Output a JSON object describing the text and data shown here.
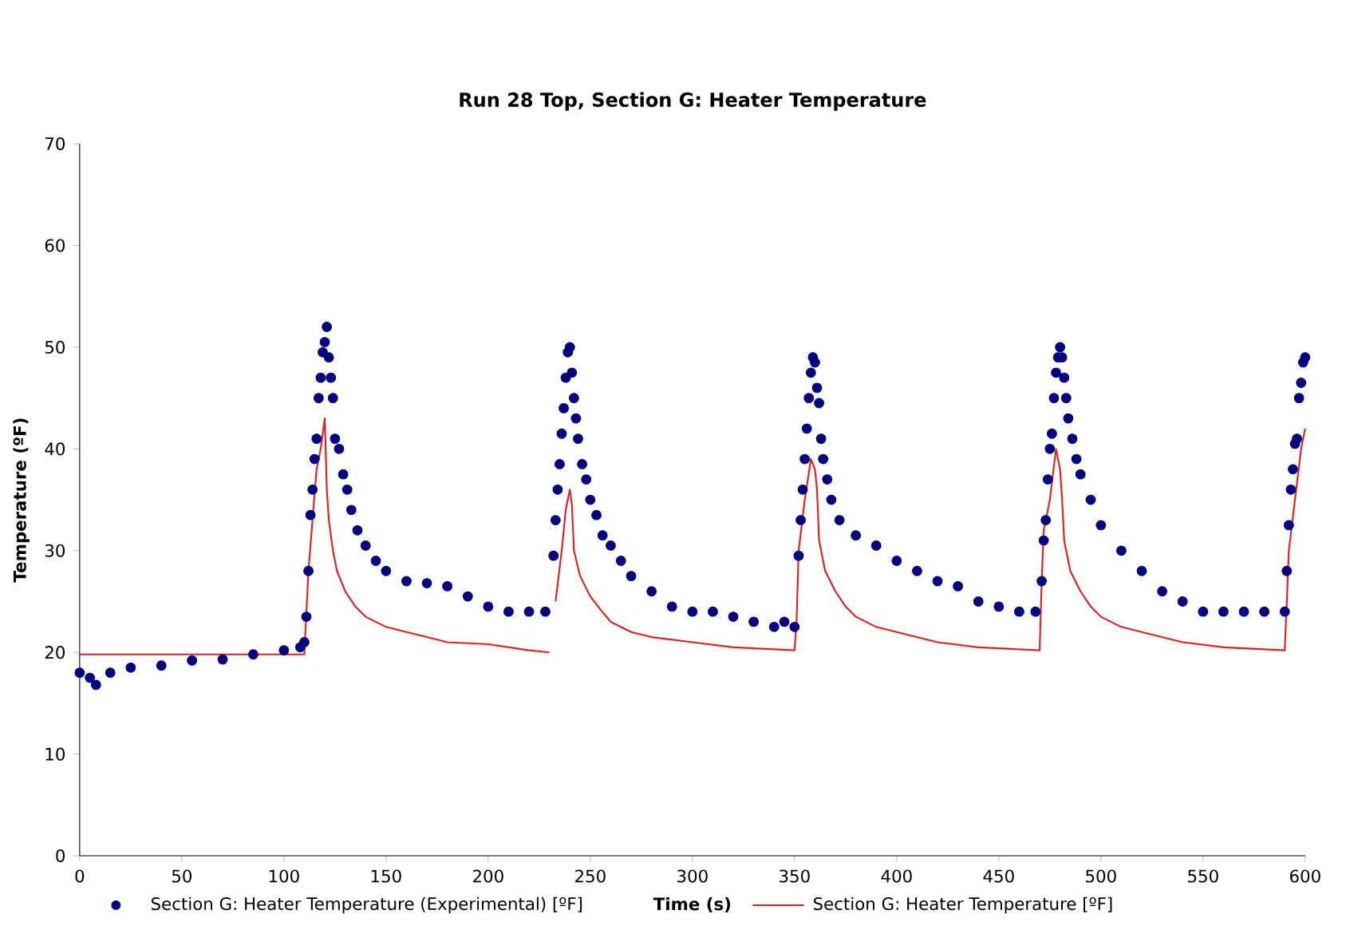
{
  "chart_data": {
    "type": "scatter",
    "title": "Run 28 Top, Section G: Heater Temperature",
    "xlabel": "Time (s)",
    "ylabel": "Temperature (ºF)",
    "xlim": [
      0,
      600
    ],
    "xticks": [
      0,
      50,
      100,
      150,
      200,
      250,
      300,
      350,
      400,
      450,
      500,
      550,
      600
    ],
    "ylim": [
      0,
      70
    ],
    "yticks": [
      0,
      10,
      20,
      30,
      40,
      50,
      60,
      70
    ],
    "legend": "bottom",
    "series": [
      {
        "name": "Section G: Heater Temperature (Experimental) [ºF]",
        "marker": "circle",
        "color": "#000080",
        "x": [
          0,
          5,
          8,
          15,
          25,
          40,
          55,
          70,
          85,
          100,
          108,
          110,
          111,
          112,
          113,
          114,
          115,
          116,
          117,
          118,
          119,
          120,
          121,
          122,
          123,
          124,
          125,
          127,
          129,
          131,
          133,
          136,
          140,
          145,
          150,
          160,
          170,
          180,
          190,
          200,
          210,
          220,
          228,
          232,
          233,
          234,
          235,
          236,
          237,
          238,
          239,
          240,
          241,
          242,
          243,
          244,
          246,
          248,
          250,
          253,
          256,
          260,
          265,
          270,
          280,
          290,
          300,
          310,
          320,
          330,
          340,
          345,
          350,
          352,
          353,
          354,
          355,
          356,
          357,
          358,
          359,
          360,
          361,
          362,
          363,
          364,
          366,
          368,
          372,
          380,
          390,
          400,
          410,
          420,
          430,
          440,
          450,
          460,
          468,
          471,
          472,
          473,
          474,
          475,
          476,
          477,
          478,
          479,
          480,
          481,
          482,
          483,
          484,
          486,
          488,
          490,
          495,
          500,
          510,
          520,
          530,
          540,
          550,
          560,
          570,
          580,
          590,
          591,
          592,
          593,
          594,
          595,
          596,
          597,
          598,
          599,
          600
        ],
        "values": [
          18,
          17.5,
          16.8,
          18,
          18.5,
          18.7,
          19.2,
          19.3,
          19.8,
          20.2,
          20.5,
          21,
          23.5,
          28,
          33.5,
          36,
          39,
          41,
          45,
          47,
          49.5,
          50.5,
          52,
          49,
          47,
          45,
          41,
          40,
          37.5,
          36,
          34,
          32,
          30.5,
          29,
          28,
          27,
          26.8,
          26.5,
          25.5,
          24.5,
          24,
          24,
          24,
          29.5,
          33,
          36,
          38.5,
          41.5,
          44,
          47,
          49.5,
          50,
          47.5,
          45,
          43,
          41,
          38.5,
          37,
          35,
          33.5,
          31.5,
          30.5,
          29,
          27.5,
          26,
          24.5,
          24,
          24,
          23.5,
          23,
          22.5,
          23,
          22.5,
          29.5,
          33,
          36,
          39,
          42,
          45,
          47.5,
          49,
          48.5,
          46,
          44.5,
          41,
          39,
          37,
          35,
          33,
          31.5,
          30.5,
          29,
          28,
          27,
          26.5,
          25,
          24.5,
          24,
          24,
          27,
          31,
          33,
          37,
          40,
          41.5,
          45,
          47.5,
          49,
          50,
          49,
          47,
          45,
          43,
          41,
          39,
          37.5,
          35,
          32.5,
          30,
          28,
          26,
          25,
          24,
          24,
          24,
          24,
          24,
          28,
          32.5,
          36,
          38,
          40.5,
          41,
          45,
          46.5,
          48.5,
          49
        ]
      },
      {
        "name": "Section G: Heater Temperature [ºF]",
        "type": "line",
        "marker": "none",
        "line_style": "solid",
        "color": "#e02020",
        "x": [
          0,
          110,
          112,
          114,
          116,
          118,
          120,
          121,
          122,
          124,
          126,
          130,
          135,
          140,
          150,
          160,
          170,
          180,
          200,
          220,
          230,
          231,
          233,
          236,
          238,
          240,
          241,
          242,
          245,
          250,
          255,
          260,
          270,
          280,
          300,
          320,
          350,
          351,
          352,
          355,
          358,
          360,
          361,
          362,
          365,
          370,
          375,
          380,
          390,
          400,
          420,
          440,
          470,
          471,
          472,
          475,
          478,
          480,
          481,
          482,
          485,
          490,
          495,
          500,
          510,
          520,
          540,
          560,
          590,
          591,
          592,
          595,
          598,
          600
        ],
        "values": [
          19.8,
          19.8,
          28,
          33,
          38,
          40,
          43,
          36,
          33,
          30,
          28,
          26,
          24.5,
          23.5,
          22.5,
          22,
          21.5,
          21,
          20.8,
          20.2,
          20,
          null,
          25,
          30,
          34,
          36,
          34.5,
          30,
          27.5,
          25.5,
          24.2,
          23,
          22,
          21.5,
          21,
          20.5,
          20.2,
          23,
          30,
          35,
          39,
          38,
          36,
          31,
          28,
          26,
          24.5,
          23.5,
          22.5,
          22,
          21,
          20.5,
          20.2,
          27,
          32,
          35,
          40,
          38,
          35,
          31,
          28,
          26,
          24.5,
          23.5,
          22.5,
          22,
          21,
          20.5,
          20.2,
          25,
          30,
          35,
          40,
          42
        ]
      }
    ]
  }
}
